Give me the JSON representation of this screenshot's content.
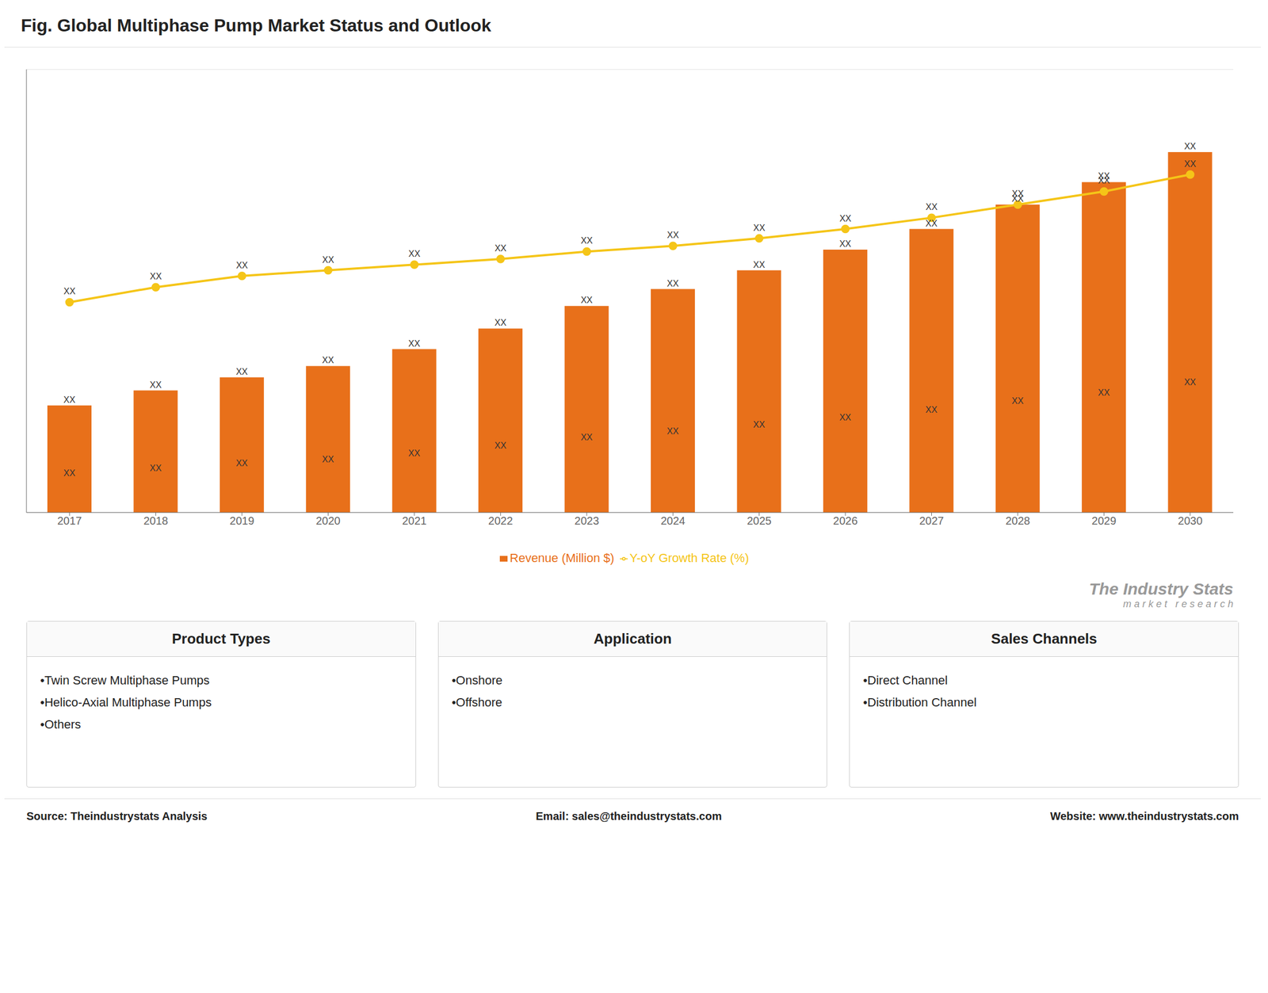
{
  "chart_data": {
    "type": "bar",
    "title": "Fig. Global Multiphase Pump Market Status and Outlook",
    "categories": [
      "2017",
      "2018",
      "2019",
      "2020",
      "2021",
      "2022",
      "2023",
      "2024",
      "2025",
      "2026",
      "2027",
      "2028",
      "2029",
      "2030"
    ],
    "series": [
      {
        "name": "Revenue (Million $)",
        "type": "bar",
        "color": "#e8701a",
        "values": [
          28.5,
          32.5,
          36,
          39,
          43.5,
          49,
          55,
          59.5,
          64.5,
          70,
          75.5,
          82,
          88,
          96
        ],
        "value_labels": [
          "XX",
          "XX",
          "XX",
          "XX",
          "XX",
          "XX",
          "XX",
          "XX",
          "XX",
          "XX",
          "XX",
          "XX",
          "XX",
          "XX"
        ],
        "inner_labels": [
          "XX",
          "XX",
          "XX",
          "XX",
          "XX",
          "XX",
          "XX",
          "XX",
          "XX",
          "XX",
          "XX",
          "XX",
          "XX",
          "XX"
        ]
      },
      {
        "name": "Y-oY Growth Rate (%)",
        "type": "line",
        "color": "#f5c518",
        "marker": "circle",
        "values": [
          56,
          60,
          63,
          64.5,
          66,
          67.5,
          69.5,
          71,
          73,
          75.5,
          78.5,
          82,
          85.5,
          90
        ],
        "value_labels": [
          "XX",
          "XX",
          "XX",
          "XX",
          "XX",
          "XX",
          "XX",
          "XX",
          "XX",
          "XX",
          "XX",
          "XX",
          "XX",
          "XX"
        ]
      }
    ],
    "ylim": [
      0,
      118
    ],
    "yticks": [
      0,
      20,
      40,
      60,
      80,
      100
    ],
    "grid": true,
    "tick_labels": "x",
    "legend": "bottom",
    "watermark": [
      "The Industry Stats",
      "m a r k e t   r e s e a r c h"
    ],
    "panels": [
      {
        "title": "Product Types",
        "items": [
          "•Twin Screw Multiphase Pumps",
          "•Helico-Axial Multiphase Pumps",
          "•Others"
        ]
      },
      {
        "title": "Application",
        "items": [
          "•Onshore",
          "•Offshore"
        ]
      },
      {
        "title": "Sales Channels",
        "items": [
          "•Direct Channel",
          "•Distribution Channel"
        ]
      }
    ],
    "footer": [
      "Source: Theindustrystats Analysis",
      "Email: sales@theindustrystats.com",
      "Website: www.theindustrystats.com"
    ]
  }
}
